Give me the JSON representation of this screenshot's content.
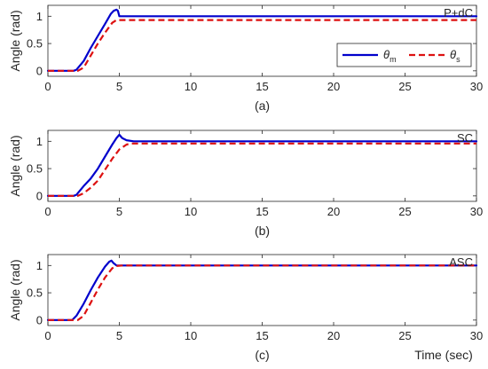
{
  "chart_data": [
    {
      "type": "line",
      "title": "P+dC",
      "subcaption": "(a)",
      "ylabel": "Angle (rad)",
      "xlabel": "",
      "xlim": [
        0,
        30
      ],
      "ylim": [
        -0.1,
        1.2
      ],
      "xticks": [
        "0",
        "5",
        "10",
        "15",
        "20",
        "25",
        "30"
      ],
      "yticks": [
        "0",
        "0.5",
        "1"
      ],
      "grid": false,
      "legend": {
        "placement": "middle-right",
        "entries": [
          {
            "sym": "θ",
            "sub": "m"
          },
          {
            "sym": "θ",
            "sub": "s"
          }
        ]
      },
      "series": [
        {
          "name": "θm",
          "color": "#0000cc",
          "style": "solid",
          "x": [
            0,
            1.8,
            2.0,
            2.5,
            3.0,
            3.5,
            4.0,
            4.4,
            4.6,
            4.8,
            4.9,
            5.0,
            5.2,
            30
          ],
          "y": [
            0,
            0,
            0.02,
            0.18,
            0.42,
            0.64,
            0.86,
            1.04,
            1.1,
            1.12,
            1.1,
            1.0,
            1.0,
            1.0
          ]
        },
        {
          "name": "θs",
          "color": "#dd1111",
          "style": "dashed",
          "x": [
            0,
            2.1,
            2.5,
            3.0,
            3.5,
            4.0,
            4.5,
            4.8,
            5.0,
            30
          ],
          "y": [
            0,
            0,
            0.06,
            0.28,
            0.5,
            0.7,
            0.88,
            0.93,
            0.93,
            0.93
          ]
        }
      ]
    },
    {
      "type": "line",
      "title": "SC",
      "subcaption": "(b)",
      "ylabel": "Angle (rad)",
      "xlabel": "",
      "xlim": [
        0,
        30
      ],
      "ylim": [
        -0.1,
        1.2
      ],
      "xticks": [
        "0",
        "5",
        "10",
        "15",
        "20",
        "25",
        "30"
      ],
      "yticks": [
        "0",
        "0.5",
        "1"
      ],
      "grid": false,
      "series": [
        {
          "name": "θm",
          "color": "#0000cc",
          "style": "solid",
          "x": [
            0,
            1.8,
            2.0,
            2.5,
            3.0,
            3.5,
            4.0,
            4.5,
            4.8,
            5.0,
            5.2,
            5.5,
            6.0,
            30
          ],
          "y": [
            0,
            0,
            0.02,
            0.18,
            0.32,
            0.5,
            0.72,
            0.94,
            1.06,
            1.12,
            1.06,
            1.02,
            1.0,
            1.0
          ]
        },
        {
          "name": "θs",
          "color": "#dd1111",
          "style": "dashed",
          "x": [
            0,
            2.1,
            2.5,
            3.0,
            3.5,
            4.0,
            4.5,
            5.0,
            5.5,
            5.8,
            30
          ],
          "y": [
            0,
            0,
            0.05,
            0.15,
            0.28,
            0.48,
            0.68,
            0.85,
            0.94,
            0.96,
            0.96
          ]
        }
      ]
    },
    {
      "type": "line",
      "title": "ASC",
      "subcaption": "(c)",
      "ylabel": "Angle (rad)",
      "xlabel": "Time (sec)",
      "xlim": [
        0,
        30
      ],
      "ylim": [
        -0.1,
        1.2
      ],
      "xticks": [
        "0",
        "5",
        "10",
        "15",
        "20",
        "25",
        "30"
      ],
      "yticks": [
        "0",
        "0.5",
        "1"
      ],
      "grid": false,
      "series": [
        {
          "name": "θm",
          "color": "#0000cc",
          "style": "solid",
          "x": [
            0,
            1.7,
            2.0,
            2.5,
            3.0,
            3.5,
            4.0,
            4.3,
            4.45,
            4.6,
            4.8,
            30
          ],
          "y": [
            0,
            0,
            0.08,
            0.3,
            0.55,
            0.78,
            0.98,
            1.07,
            1.09,
            1.04,
            1.0,
            1.0
          ]
        },
        {
          "name": "θs",
          "color": "#dd1111",
          "style": "dashed",
          "x": [
            0,
            2.1,
            2.5,
            3.0,
            3.5,
            4.0,
            4.5,
            4.8,
            5.2,
            30
          ],
          "y": [
            0,
            0,
            0.08,
            0.32,
            0.56,
            0.78,
            0.95,
            0.99,
            1.0,
            1.0
          ]
        }
      ]
    }
  ]
}
